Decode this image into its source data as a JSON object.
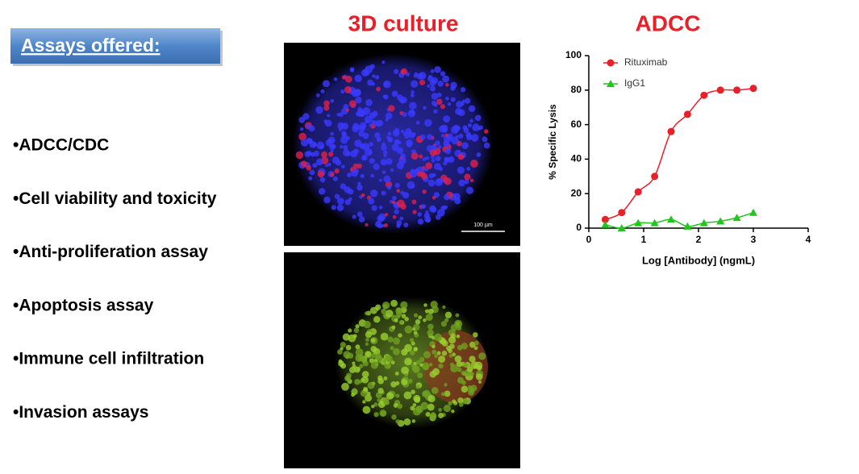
{
  "header": {
    "title": "Assays offered:"
  },
  "list": [
    "•ADCC/CDC",
    "•Cell viability and toxicity",
    "•Anti-proliferation assay",
    "•Apoptosis assay",
    "•Immune cell infiltration",
    "•Invasion assays"
  ],
  "images": {
    "title": "3D culture",
    "scale_bar": "100 µm"
  },
  "chart_data": {
    "type": "line",
    "title": "ADCC",
    "x_label": "Log [Antibody] (ngmL)",
    "y_label": "% Specific Lysis",
    "x": [
      0.3,
      0.6,
      0.9,
      1.2,
      1.5,
      1.8,
      2.1,
      2.4,
      2.7,
      3.0
    ],
    "series": [
      {
        "name": "Rituximab",
        "color": "#e8202a",
        "marker": "circle",
        "values": [
          5,
          9,
          21,
          30,
          56,
          66,
          77,
          80,
          80,
          81
        ]
      },
      {
        "name": "IgG1",
        "color": "#22c41e",
        "marker": "triangle",
        "values": [
          2,
          0,
          3,
          3,
          5,
          1,
          3,
          4,
          6,
          9
        ]
      }
    ],
    "xlim": [
      0,
      4
    ],
    "xticks": [
      0,
      1,
      2,
      3,
      4
    ],
    "ylim": [
      0,
      100
    ],
    "yticks": [
      0,
      20,
      40,
      60,
      80,
      100
    ]
  }
}
